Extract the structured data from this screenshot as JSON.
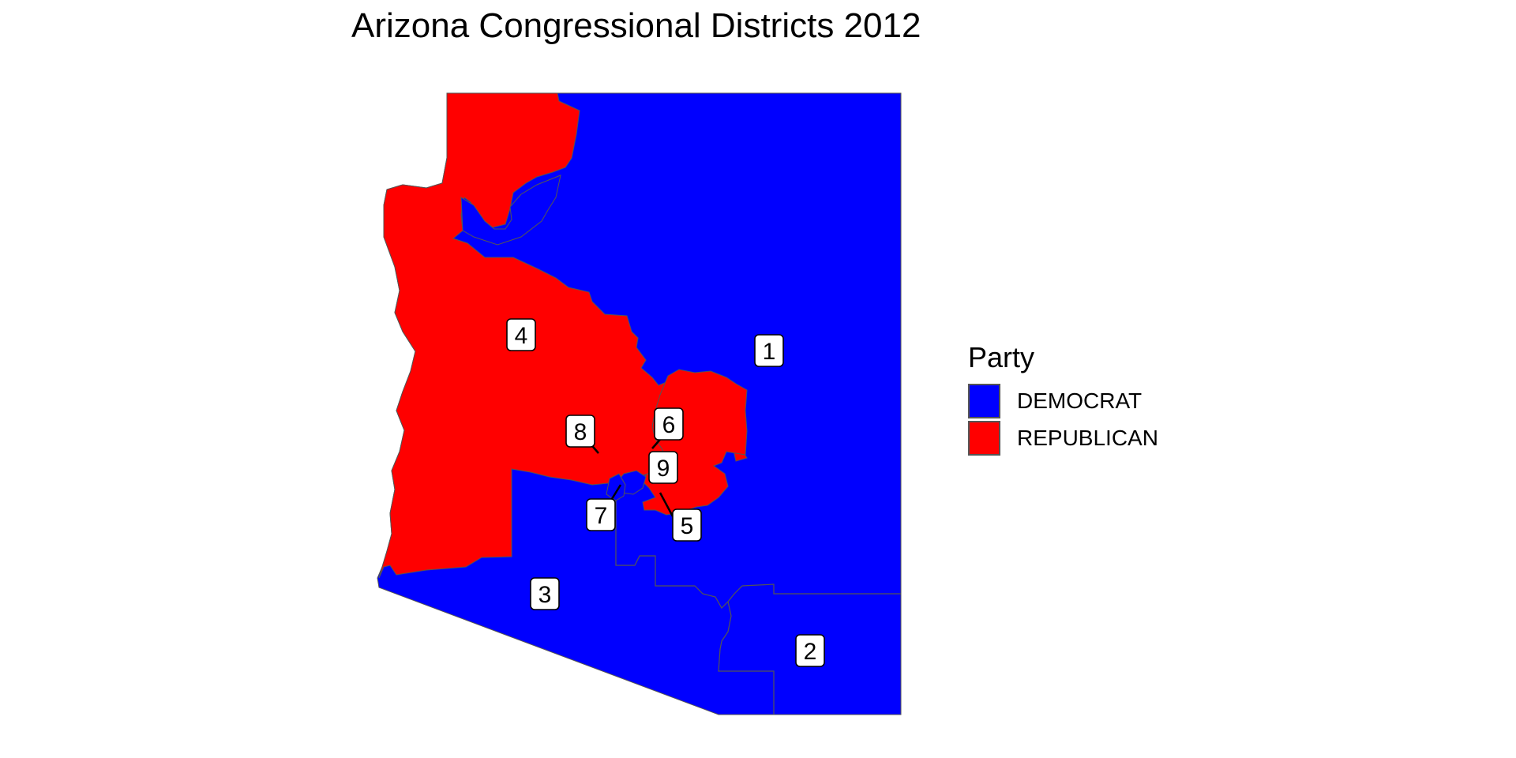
{
  "title": "Arizona Congressional Districts 2012",
  "legend": {
    "title": "Party",
    "items": [
      {
        "label": "DEMOCRAT",
        "color": "#0000ff"
      },
      {
        "label": "REPUBLICAN",
        "color": "#ff0000"
      }
    ]
  },
  "districts": [
    {
      "number": "1",
      "party": "DEMOCRAT"
    },
    {
      "number": "2",
      "party": "DEMOCRAT"
    },
    {
      "number": "3",
      "party": "DEMOCRAT"
    },
    {
      "number": "4",
      "party": "REPUBLICAN"
    },
    {
      "number": "5",
      "party": "REPUBLICAN"
    },
    {
      "number": "6",
      "party": "REPUBLICAN"
    },
    {
      "number": "7",
      "party": "DEMOCRAT"
    },
    {
      "number": "8",
      "party": "REPUBLICAN"
    },
    {
      "number": "9",
      "party": "DEMOCRAT"
    }
  ]
}
